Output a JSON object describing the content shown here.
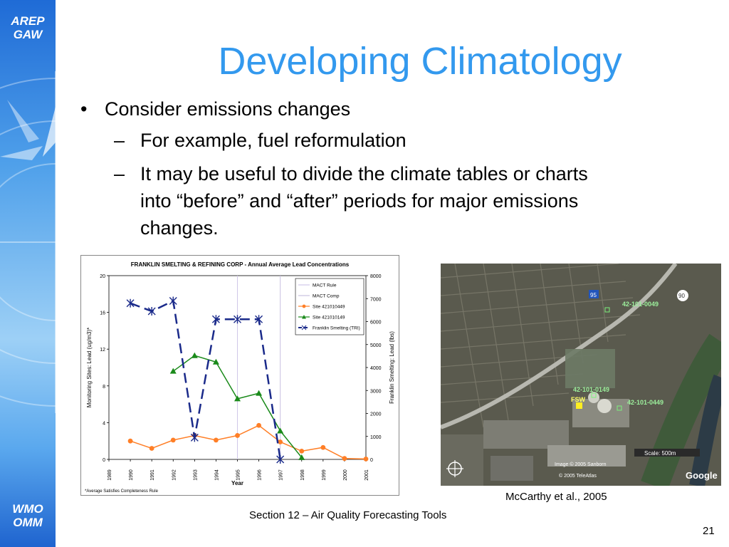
{
  "sidebar": {
    "logo_top": [
      "AREP",
      "GAW"
    ],
    "logo_bottom": [
      "WMO",
      "OMM"
    ]
  },
  "slide": {
    "title": "Developing Climatology",
    "bullets": [
      {
        "level": 1,
        "marker": "•",
        "lines": [
          "Consider emissions changes"
        ]
      },
      {
        "level": 2,
        "marker": "–",
        "lines": [
          "For example, fuel reformulation"
        ]
      },
      {
        "level": 2,
        "marker": "–",
        "lines": [
          "It may be useful to divide the climate tables or charts",
          "into “before” and “after” periods for major emissions",
          "changes."
        ]
      }
    ],
    "footer": "Section 12 – Air Quality Forecasting Tools",
    "page_number": "21",
    "credit": "McCarthy et al., 2005"
  },
  "map": {
    "markers": [
      "42-101-0049",
      "42-101-0149",
      "42-101-0449",
      "FSW"
    ],
    "scale": "Scale: 500m",
    "image_credit": [
      "Image © 2005 Sanborn",
      "© 2005 TeleAtlas"
    ],
    "brand": "Google",
    "route_shields": [
      "95",
      "90"
    ]
  },
  "chart_data": {
    "type": "line",
    "title": "FRANKLIN SMELTING & REFINING CORP - Annual Average Lead Concentrations",
    "xlabel": "Year",
    "ylabel": "Monitoring Sites:  Lead (ug/m3)*",
    "y2label": "Franklin Smelting:  Lead (lbs)",
    "categories": [
      "1989",
      "1990",
      "1991",
      "1992",
      "1993",
      "1994",
      "1995",
      "1996",
      "1997",
      "1998",
      "1999",
      "2000",
      "2001"
    ],
    "ylim": [
      0,
      20
    ],
    "y2lim": [
      0,
      8000
    ],
    "yticks": [
      "0",
      "4",
      "8",
      "12",
      "16",
      "20"
    ],
    "y2ticks": [
      "0",
      "1000",
      "2000",
      "3000",
      "4000",
      "5000",
      "6000",
      "7000",
      "8000"
    ],
    "footnote": "*Average Satisfies Completeness Rule",
    "legend_position": "top-right",
    "grid": false,
    "vlines": [
      {
        "name": "MACT Rule",
        "x": "1995",
        "color": "#d0c8e8"
      },
      {
        "name": "MACT Comp",
        "x": "1997",
        "color": "#c8c0e0"
      }
    ],
    "series": [
      {
        "name": "Site 421010449",
        "axis": "left",
        "color": "#ff7f27",
        "marker": "circle",
        "values": [
          null,
          2.0,
          1.2,
          2.1,
          2.6,
          2.1,
          2.6,
          3.7,
          1.9,
          0.9,
          1.3,
          0.1,
          0.05
        ]
      },
      {
        "name": "Site 421010149",
        "axis": "left",
        "color": "#1a8a1a",
        "marker": "triangle",
        "values": [
          null,
          null,
          null,
          9.6,
          11.3,
          10.6,
          6.6,
          7.2,
          3.1,
          0.2,
          null,
          null,
          null
        ]
      },
      {
        "name": "Franklin Smelting (TRI)",
        "axis": "right",
        "color": "#1a2a8a",
        "marker": "x",
        "dash": true,
        "values": [
          null,
          6800,
          6450,
          6900,
          950,
          6100,
          6100,
          6100,
          0,
          null,
          null,
          null,
          null
        ]
      }
    ]
  }
}
